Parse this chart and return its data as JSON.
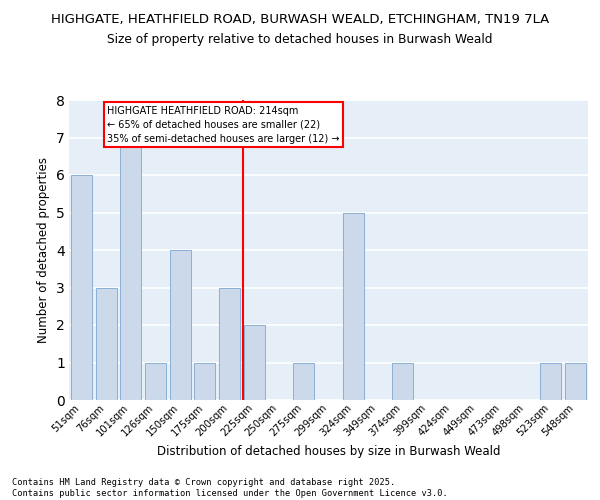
{
  "title1": "HIGHGATE, HEATHFIELD ROAD, BURWASH WEALD, ETCHINGHAM, TN19 7LA",
  "title2": "Size of property relative to detached houses in Burwash Weald",
  "categories": [
    "51sqm",
    "76sqm",
    "101sqm",
    "126sqm",
    "150sqm",
    "175sqm",
    "200sqm",
    "225sqm",
    "250sqm",
    "275sqm",
    "299sqm",
    "324sqm",
    "349sqm",
    "374sqm",
    "399sqm",
    "424sqm",
    "449sqm",
    "473sqm",
    "498sqm",
    "523sqm",
    "548sqm"
  ],
  "values": [
    6,
    3,
    7,
    1,
    4,
    1,
    3,
    2,
    0,
    1,
    0,
    5,
    0,
    1,
    0,
    0,
    0,
    0,
    0,
    1,
    1
  ],
  "bar_color": "#ccd9ea",
  "bar_edge_color": "#8ab0d4",
  "background_color": "#e6eef8",
  "grid_color": "#ffffff",
  "ylabel": "Number of detached properties",
  "xlabel": "Distribution of detached houses by size in Burwash Weald",
  "ylim": [
    0,
    8
  ],
  "yticks": [
    0,
    1,
    2,
    3,
    4,
    5,
    6,
    7,
    8
  ],
  "vline_color": "red",
  "vline_pos": 6.56,
  "annotation_text": "HIGHGATE HEATHFIELD ROAD: 214sqm\n← 65% of detached houses are smaller (22)\n35% of semi-detached houses are larger (12) →",
  "footer": "Contains HM Land Registry data © Crown copyright and database right 2025.\nContains public sector information licensed under the Open Government Licence v3.0."
}
